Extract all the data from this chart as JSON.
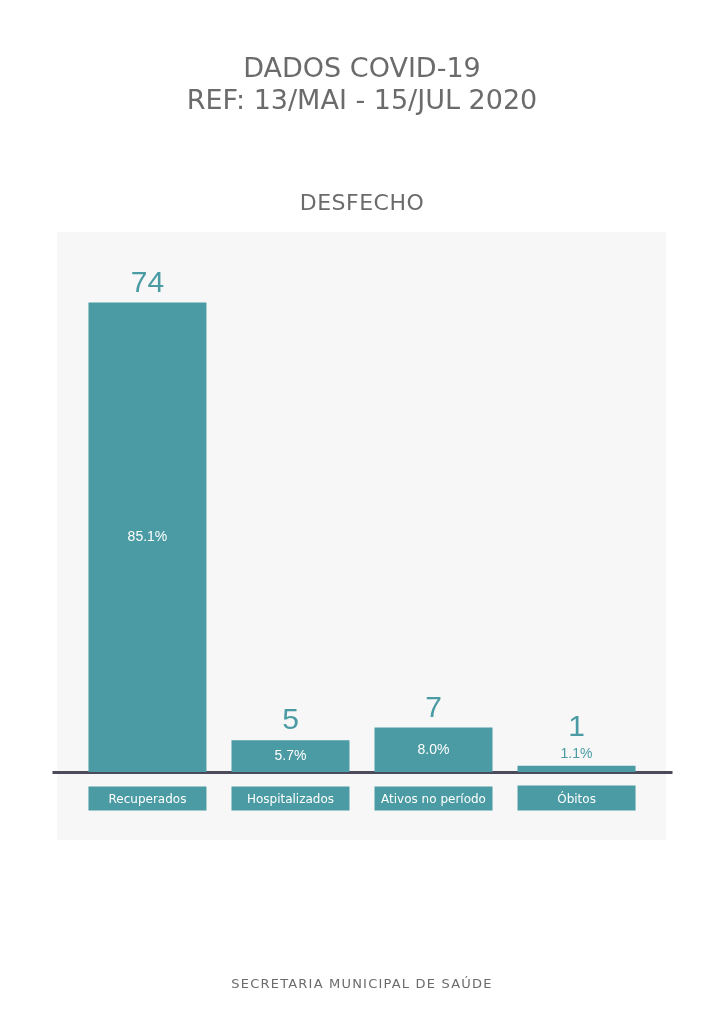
{
  "chart_data": {
    "type": "bar",
    "title": "DADOS COVID-19",
    "subtitle": "REF: 13/MAI - 15/JUL 2020",
    "annotations": [
      "DESFECHO",
      "85.1%",
      "5.7%",
      "8.0%",
      "1.1%",
      "SECRETARIA MUNICIPAL DE SAÚDE"
    ],
    "categories": [
      "Recuperados",
      "Hospitalizados",
      "Ativos no período",
      "Óbitos"
    ],
    "values": [
      74,
      5,
      7,
      1
    ],
    "color": "#4a9ba3",
    "data_labels": true,
    "tick_labels": "x"
  }
}
